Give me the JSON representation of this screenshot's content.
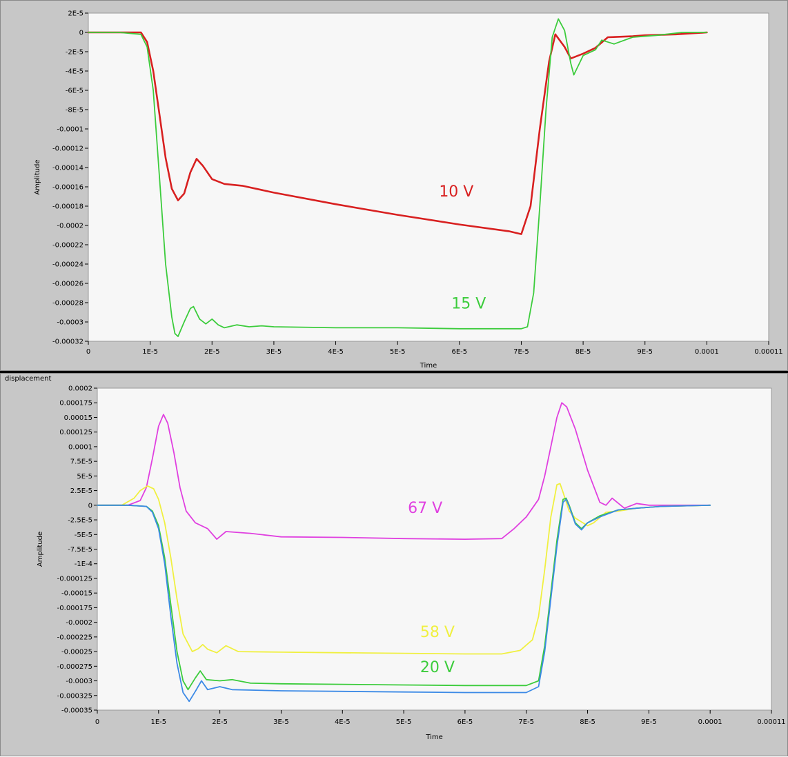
{
  "chart_data": [
    {
      "type": "line",
      "title": "",
      "xlabel": "Time",
      "ylabel": "Amplitude",
      "xlim": [
        0,
        0.00011
      ],
      "ylim": [
        -0.00032,
        2e-05
      ],
      "x_ticks": [
        "0",
        "1E-5",
        "2E-5",
        "3E-5",
        "4E-5",
        "5E-5",
        "6E-5",
        "7E-5",
        "8E-5",
        "9E-5",
        "0.0001",
        "0.00011"
      ],
      "y_ticks": [
        "2E-5",
        "0",
        "-2E-5",
        "-4E-5",
        "-6E-5",
        "-8E-5",
        "-0.0001",
        "-0.00012",
        "-0.00014",
        "-0.00016",
        "-0.00018",
        "-0.0002",
        "-0.00022",
        "-0.00024",
        "-0.00026",
        "-0.00028",
        "-0.0003",
        "-0.00032"
      ],
      "background_color": "#f7f7f7",
      "series": [
        {
          "name": "10 V",
          "color": "#d82020",
          "label_at": [
            5.95e-05,
            -0.00017
          ],
          "points": [
            [
              0,
              0
            ],
            [
              5e-06,
              0
            ],
            [
              8.5e-06,
              0
            ],
            [
              9.5e-06,
              -1e-05
            ],
            [
              1.05e-05,
              -4e-05
            ],
            [
              1.15e-05,
              -8.5e-05
            ],
            [
              1.25e-05,
              -0.00013
            ],
            [
              1.35e-05,
              -0.000162
            ],
            [
              1.45e-05,
              -0.000174
            ],
            [
              1.55e-05,
              -0.000167
            ],
            [
              1.65e-05,
              -0.000145
            ],
            [
              1.75e-05,
              -0.000131
            ],
            [
              1.85e-05,
              -0.000138
            ],
            [
              2e-05,
              -0.000152
            ],
            [
              2.2e-05,
              -0.000157
            ],
            [
              2.5e-05,
              -0.000159
            ],
            [
              3e-05,
              -0.000166
            ],
            [
              4e-05,
              -0.000178
            ],
            [
              5e-05,
              -0.000189
            ],
            [
              6e-05,
              -0.000199
            ],
            [
              6.8e-05,
              -0.000206
            ],
            [
              7e-05,
              -0.000209
            ],
            [
              7.15e-05,
              -0.00018
            ],
            [
              7.3e-05,
              -0.0001
            ],
            [
              7.45e-05,
              -3e-05
            ],
            [
              7.55e-05,
              -2e-06
            ],
            [
              7.7e-05,
              -1.5e-05
            ],
            [
              7.8e-05,
              -2.7e-05
            ],
            [
              8e-05,
              -2.2e-05
            ],
            [
              8.2e-05,
              -1.6e-05
            ],
            [
              8.4e-05,
              -5e-06
            ],
            [
              8.8e-05,
              -4e-06
            ],
            [
              9e-05,
              -3e-06
            ],
            [
              9.5e-05,
              -2e-06
            ],
            [
              0.0001,
              0
            ]
          ]
        },
        {
          "name": "15 V",
          "color": "#3ccc3c",
          "label_at": [
            6.15e-05,
            -0.000286
          ],
          "points": [
            [
              0,
              0
            ],
            [
              5e-06,
              0
            ],
            [
              8.5e-06,
              -2e-06
            ],
            [
              9.5e-06,
              -1.5e-05
            ],
            [
              1.05e-05,
              -6e-05
            ],
            [
              1.15e-05,
              -0.00015
            ],
            [
              1.25e-05,
              -0.00024
            ],
            [
              1.35e-05,
              -0.000295
            ],
            [
              1.4e-05,
              -0.000312
            ],
            [
              1.45e-05,
              -0.000315
            ],
            [
              1.55e-05,
              -0.0003
            ],
            [
              1.65e-05,
              -0.000286
            ],
            [
              1.7e-05,
              -0.000284
            ],
            [
              1.8e-05,
              -0.000297
            ],
            [
              1.9e-05,
              -0.000302
            ],
            [
              2e-05,
              -0.000297
            ],
            [
              2.1e-05,
              -0.000303
            ],
            [
              2.2e-05,
              -0.000306
            ],
            [
              2.4e-05,
              -0.000303
            ],
            [
              2.6e-05,
              -0.000305
            ],
            [
              2.8e-05,
              -0.000304
            ],
            [
              3e-05,
              -0.000305
            ],
            [
              4e-05,
              -0.000306
            ],
            [
              5e-05,
              -0.000306
            ],
            [
              6e-05,
              -0.000307
            ],
            [
              7e-05,
              -0.000307
            ],
            [
              7.1e-05,
              -0.000305
            ],
            [
              7.2e-05,
              -0.00027
            ],
            [
              7.3e-05,
              -0.00018
            ],
            [
              7.4e-05,
              -8e-05
            ],
            [
              7.5e-05,
              -5e-06
            ],
            [
              7.6e-05,
              1.4e-05
            ],
            [
              7.7e-05,
              2e-06
            ],
            [
              7.8e-05,
              -3.2e-05
            ],
            [
              7.85e-05,
              -4.4e-05
            ],
            [
              8e-05,
              -2.4e-05
            ],
            [
              8.2e-05,
              -1.8e-05
            ],
            [
              8.3e-05,
              -8e-06
            ],
            [
              8.5e-05,
              -1.2e-05
            ],
            [
              8.8e-05,
              -5e-06
            ],
            [
              9.2e-05,
              -3e-06
            ],
            [
              9.6e-05,
              0
            ],
            [
              0.0001,
              0
            ]
          ]
        }
      ]
    },
    {
      "type": "line",
      "title": "displacement",
      "xlabel": "Time",
      "ylabel": "Amplitude",
      "xlim": [
        0,
        0.00011
      ],
      "ylim": [
        -0.00035,
        0.0002
      ],
      "x_ticks": [
        "0",
        "1E-5",
        "2E-5",
        "3E-5",
        "4E-5",
        "5E-5",
        "6E-5",
        "7E-5",
        "8E-5",
        "9E-5",
        "0.0001",
        "0.00011"
      ],
      "y_ticks": [
        "0.0002",
        "0.000175",
        "0.00015",
        "0.000125",
        "0.0001",
        "7.5E-5",
        "5E-5",
        "2.5E-5",
        "0",
        "-2.5E-5",
        "-5E-5",
        "-7.5E-5",
        "-1E-4",
        "-0.000125",
        "-0.00015",
        "-0.000175",
        "-0.0002",
        "-0.000225",
        "-0.00025",
        "-0.000275",
        "-0.0003",
        "-0.000325",
        "-0.00035"
      ],
      "background_color": "#f7f7f7",
      "series": [
        {
          "name": "67 V",
          "color": "#e040e0",
          "label_at": [
            5.35e-05,
            -1.3e-05
          ],
          "points": [
            [
              0,
              0
            ],
            [
              5e-06,
              0
            ],
            [
              7e-06,
              8e-06
            ],
            [
              8e-06,
              3e-05
            ],
            [
              9e-06,
              8e-05
            ],
            [
              1e-05,
              0.000135
            ],
            [
              1.08e-05,
              0.000155
            ],
            [
              1.15e-05,
              0.00014
            ],
            [
              1.25e-05,
              9e-05
            ],
            [
              1.35e-05,
              3e-05
            ],
            [
              1.45e-05,
              -1e-05
            ],
            [
              1.6e-05,
              -3e-05
            ],
            [
              1.8e-05,
              -4e-05
            ],
            [
              1.95e-05,
              -5.8e-05
            ],
            [
              2.1e-05,
              -4.5e-05
            ],
            [
              2.5e-05,
              -4.8e-05
            ],
            [
              3e-05,
              -5.4e-05
            ],
            [
              4e-05,
              -5.5e-05
            ],
            [
              5e-05,
              -5.7e-05
            ],
            [
              6e-05,
              -5.8e-05
            ],
            [
              6.6e-05,
              -5.7e-05
            ],
            [
              6.8e-05,
              -4e-05
            ],
            [
              7e-05,
              -2e-05
            ],
            [
              7.2e-05,
              1e-05
            ],
            [
              7.3e-05,
              5e-05
            ],
            [
              7.4e-05,
              0.0001
            ],
            [
              7.5e-05,
              0.00015
            ],
            [
              7.58e-05,
              0.000175
            ],
            [
              7.66e-05,
              0.000168
            ],
            [
              7.8e-05,
              0.00013
            ],
            [
              8e-05,
              6e-05
            ],
            [
              8.2e-05,
              5e-06
            ],
            [
              8.3e-05,
              0
            ],
            [
              8.4e-05,
              1.2e-05
            ],
            [
              8.6e-05,
              -5e-06
            ],
            [
              8.8e-05,
              3e-06
            ],
            [
              9e-05,
              0
            ],
            [
              9.5e-05,
              0
            ],
            [
              0.0001,
              0
            ]
          ]
        },
        {
          "name": "58 V",
          "color": "#f0f040",
          "label_at": [
            5.55e-05,
            -0.000225
          ],
          "points": [
            [
              0,
              0
            ],
            [
              4e-06,
              0
            ],
            [
              6e-06,
              1.2e-05
            ],
            [
              7e-06,
              2.5e-05
            ],
            [
              8.2e-06,
              3.3e-05
            ],
            [
              9.2e-06,
              2.8e-05
            ],
            [
              1e-05,
              1e-05
            ],
            [
              1.1e-05,
              -3e-05
            ],
            [
              1.2e-05,
              -9e-05
            ],
            [
              1.3e-05,
              -0.00016
            ],
            [
              1.4e-05,
              -0.00022
            ],
            [
              1.55e-05,
              -0.00025
            ],
            [
              1.65e-05,
              -0.000245
            ],
            [
              1.72e-05,
              -0.000238
            ],
            [
              1.8e-05,
              -0.000246
            ],
            [
              1.95e-05,
              -0.000252
            ],
            [
              2.1e-05,
              -0.00024
            ],
            [
              2.3e-05,
              -0.00025
            ],
            [
              3e-05,
              -0.000251
            ],
            [
              4e-05,
              -0.000252
            ],
            [
              5e-05,
              -0.000253
            ],
            [
              6e-05,
              -0.000254
            ],
            [
              6.6e-05,
              -0.000254
            ],
            [
              6.9e-05,
              -0.000248
            ],
            [
              7.1e-05,
              -0.00023
            ],
            [
              7.2e-05,
              -0.00019
            ],
            [
              7.3e-05,
              -0.00011
            ],
            [
              7.4e-05,
              -2e-05
            ],
            [
              7.5e-05,
              3.5e-05
            ],
            [
              7.55e-05,
              3.7e-05
            ],
            [
              7.6e-05,
              2.2e-05
            ],
            [
              7.7e-05,
              -1e-05
            ],
            [
              7.8e-05,
              -2.2e-05
            ],
            [
              8e-05,
              -3.5e-05
            ],
            [
              8.1e-05,
              -3e-05
            ],
            [
              8.3e-05,
              -1.2e-05
            ],
            [
              8.5e-05,
              -1e-05
            ],
            [
              8.8e-05,
              -5e-06
            ],
            [
              9.2e-05,
              -2e-06
            ],
            [
              0.0001,
              0
            ]
          ]
        },
        {
          "name": "20 V",
          "color": "#3ccc3c",
          "label_at": [
            5.55e-05,
            -0.000285
          ],
          "points": [
            [
              0,
              0
            ],
            [
              5e-06,
              0
            ],
            [
              8e-06,
              -2e-06
            ],
            [
              9e-06,
              -1e-05
            ],
            [
              1e-05,
              -3.5e-05
            ],
            [
              1.1e-05,
              -9e-05
            ],
            [
              1.2e-05,
              -0.00017
            ],
            [
              1.3e-05,
              -0.00025
            ],
            [
              1.4e-05,
              -0.0003
            ],
            [
              1.48e-05,
              -0.000315
            ],
            [
              1.6e-05,
              -0.000295
            ],
            [
              1.68e-05,
              -0.000283
            ],
            [
              1.78e-05,
              -0.000298
            ],
            [
              2e-05,
              -0.0003
            ],
            [
              2.2e-05,
              -0.000298
            ],
            [
              2.5e-05,
              -0.000304
            ],
            [
              3e-05,
              -0.000305
            ],
            [
              4e-05,
              -0.000306
            ],
            [
              5e-05,
              -0.000307
            ],
            [
              6e-05,
              -0.000308
            ],
            [
              7e-05,
              -0.000308
            ],
            [
              7.2e-05,
              -0.0003
            ],
            [
              7.3e-05,
              -0.00024
            ],
            [
              7.4e-05,
              -0.00015
            ],
            [
              7.5e-05,
              -6e-05
            ],
            [
              7.6e-05,
              1e-05
            ],
            [
              7.65e-05,
              1.2e-05
            ],
            [
              7.7e-05,
              0.0
            ],
            [
              7.8e-05,
              -3e-05
            ],
            [
              7.9e-05,
              -4e-05
            ],
            [
              8e-05,
              -3e-05
            ],
            [
              8.2e-05,
              -1.8e-05
            ],
            [
              8.5e-05,
              -8e-06
            ],
            [
              8.8e-05,
              -5e-06
            ],
            [
              9.2e-05,
              -2e-06
            ],
            [
              0.0001,
              0
            ]
          ]
        },
        {
          "name": "",
          "color": "#3c8ae6",
          "points": [
            [
              0,
              0
            ],
            [
              5e-06,
              0
            ],
            [
              8e-06,
              -2e-06
            ],
            [
              9e-06,
              -1.2e-05
            ],
            [
              1e-05,
              -4e-05
            ],
            [
              1.1e-05,
              -0.0001
            ],
            [
              1.2e-05,
              -0.00019
            ],
            [
              1.3e-05,
              -0.00027
            ],
            [
              1.4e-05,
              -0.00032
            ],
            [
              1.5e-05,
              -0.000335
            ],
            [
              1.6e-05,
              -0.000318
            ],
            [
              1.7e-05,
              -0.0003
            ],
            [
              1.8e-05,
              -0.000315
            ],
            [
              2e-05,
              -0.00031
            ],
            [
              2.2e-05,
              -0.000315
            ],
            [
              3e-05,
              -0.000317
            ],
            [
              4e-05,
              -0.000318
            ],
            [
              5e-05,
              -0.000319
            ],
            [
              6e-05,
              -0.00032
            ],
            [
              7e-05,
              -0.00032
            ],
            [
              7.2e-05,
              -0.00031
            ],
            [
              7.3e-05,
              -0.00025
            ],
            [
              7.4e-05,
              -0.00016
            ],
            [
              7.5e-05,
              -7e-05
            ],
            [
              7.6e-05,
              5e-06
            ],
            [
              7.65e-05,
              1e-05
            ],
            [
              7.7e-05,
              -2e-06
            ],
            [
              7.8e-05,
              -3.2e-05
            ],
            [
              7.9e-05,
              -4.2e-05
            ],
            [
              8e-05,
              -3e-05
            ],
            [
              8.2e-05,
              -2e-05
            ],
            [
              8.5e-05,
              -8e-06
            ],
            [
              8.8e-05,
              -5e-06
            ],
            [
              9.2e-05,
              -2e-06
            ],
            [
              0.0001,
              0
            ]
          ]
        }
      ]
    }
  ]
}
